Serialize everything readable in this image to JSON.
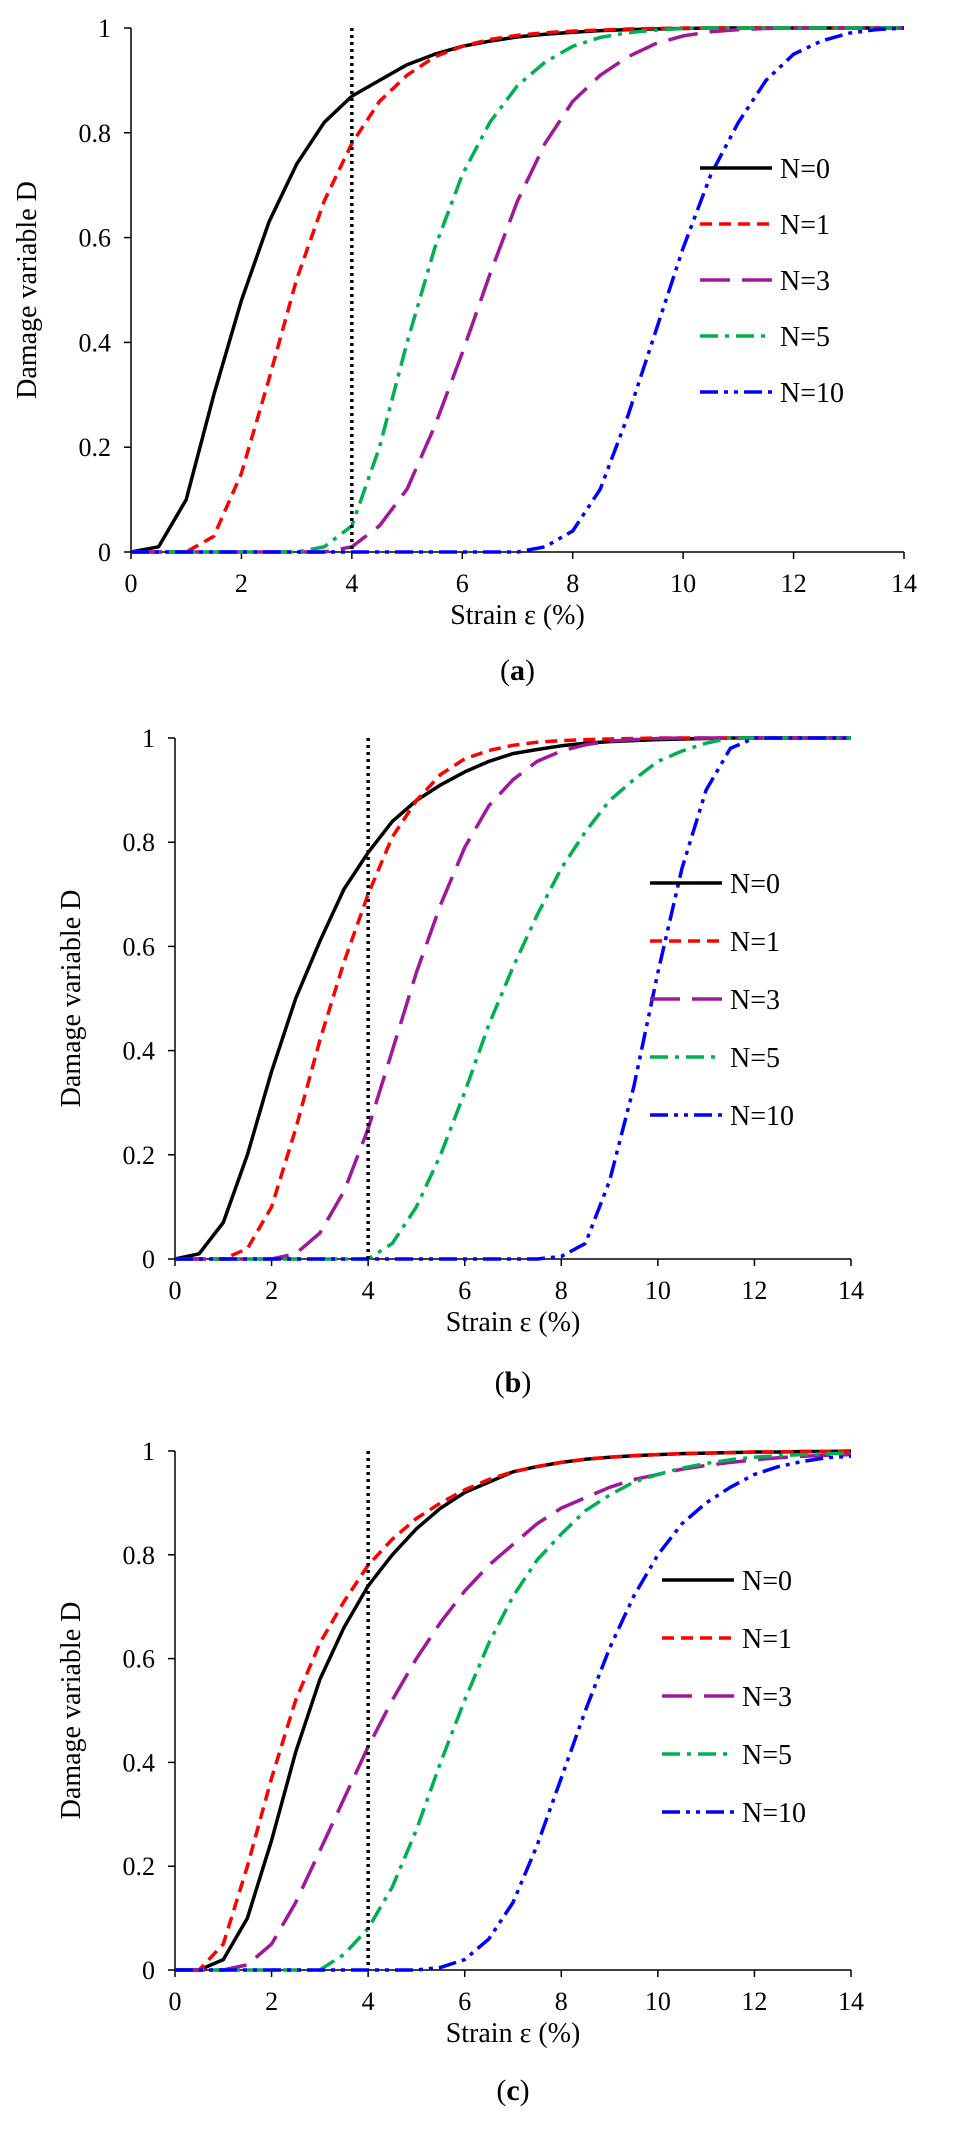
{
  "chart_data": [
    {
      "id": "a",
      "type": "line",
      "caption_open": "(",
      "caption_letter": "a",
      "caption_close": ")",
      "xlabel": "Strain ε (%)",
      "ylabel": "Damage variable D",
      "xlim": [
        0,
        14
      ],
      "ylim": [
        0,
        1
      ],
      "x_ticks": [
        "0",
        "2",
        "4",
        "6",
        "8",
        "10",
        "12",
        "14"
      ],
      "y_ticks": [
        "0",
        "0.2",
        "0.4",
        "0.6",
        "0.8",
        "1"
      ],
      "reference_x": 4,
      "legend_position": "right",
      "x": [
        0,
        0.5,
        1,
        1.5,
        2,
        2.5,
        3,
        3.5,
        4,
        4.5,
        5,
        5.5,
        6,
        6.5,
        7,
        7.5,
        8,
        8.5,
        9,
        9.5,
        10,
        10.5,
        11,
        11.5,
        12,
        12.5,
        13,
        13.5,
        14
      ],
      "series": [
        {
          "name": "N=0",
          "color": "#000000",
          "dash": "solid",
          "values": [
            0,
            0.01,
            0.1,
            0.3,
            0.48,
            0.63,
            0.74,
            0.82,
            0.87,
            0.9,
            0.93,
            0.95,
            0.965,
            0.975,
            0.983,
            0.988,
            0.992,
            0.995,
            0.997,
            0.998,
            0.999,
            1,
            1,
            1,
            1,
            1,
            1,
            1,
            1
          ]
        },
        {
          "name": "N=1",
          "color": "#ff0000",
          "dash": "short",
          "values": [
            0,
            0,
            0,
            0.03,
            0.15,
            0.33,
            0.52,
            0.67,
            0.78,
            0.86,
            0.91,
            0.945,
            0.965,
            0.978,
            0.986,
            0.991,
            0.994,
            0.996,
            0.998,
            0.999,
            1,
            1,
            1,
            1,
            1,
            1,
            1,
            1,
            1
          ]
        },
        {
          "name": "N=3",
          "color": "#a0189a",
          "dash": "long",
          "values": [
            0,
            0,
            0,
            0,
            0,
            0,
            0,
            0,
            0.01,
            0.05,
            0.12,
            0.24,
            0.38,
            0.53,
            0.67,
            0.78,
            0.86,
            0.91,
            0.945,
            0.97,
            0.985,
            0.993,
            0.997,
            0.999,
            1,
            1,
            1,
            1,
            1
          ]
        },
        {
          "name": "N=5",
          "color": "#00b050",
          "dash": "dashdot",
          "values": [
            0,
            0,
            0,
            0,
            0,
            0,
            0,
            0.01,
            0.05,
            0.2,
            0.4,
            0.58,
            0.72,
            0.82,
            0.89,
            0.935,
            0.965,
            0.982,
            0.991,
            0.996,
            0.999,
            1,
            1,
            1,
            1,
            1,
            1,
            1,
            1
          ]
        },
        {
          "name": "N=10",
          "color": "#0000ff",
          "dash": "dashdotdot",
          "values": [
            0,
            0,
            0,
            0,
            0,
            0,
            0,
            0,
            0,
            0,
            0,
            0,
            0,
            0,
            0,
            0.01,
            0.04,
            0.12,
            0.26,
            0.42,
            0.58,
            0.72,
            0.82,
            0.9,
            0.95,
            0.975,
            0.99,
            0.997,
            1
          ]
        }
      ]
    },
    {
      "id": "b",
      "type": "line",
      "caption_open": "(",
      "caption_letter": "b",
      "caption_close": ")",
      "xlabel": "Strain ε (%)",
      "ylabel": "Damage variable D",
      "xlim": [
        0,
        14
      ],
      "ylim": [
        0,
        1
      ],
      "x_ticks": [
        "0",
        "2",
        "4",
        "6",
        "8",
        "10",
        "12",
        "14"
      ],
      "y_ticks": [
        "0",
        "0.2",
        "0.4",
        "0.6",
        "0.8",
        "1"
      ],
      "reference_x": 4,
      "legend_position": "right",
      "x": [
        0,
        0.5,
        1,
        1.5,
        2,
        2.5,
        3,
        3.5,
        4,
        4.5,
        5,
        5.5,
        6,
        6.5,
        7,
        7.5,
        8,
        8.5,
        9,
        9.5,
        10,
        10.5,
        11,
        11.5,
        12,
        12.5,
        13,
        13.5,
        14
      ],
      "series": [
        {
          "name": "N=0",
          "color": "#000000",
          "dash": "solid",
          "values": [
            0,
            0.01,
            0.07,
            0.2,
            0.36,
            0.5,
            0.61,
            0.71,
            0.78,
            0.84,
            0.88,
            0.91,
            0.935,
            0.955,
            0.97,
            0.978,
            0.985,
            0.99,
            0.993,
            0.995,
            0.997,
            0.998,
            0.999,
            1,
            1,
            1,
            1,
            1,
            1
          ]
        },
        {
          "name": "N=1",
          "color": "#ff0000",
          "dash": "short",
          "values": [
            0,
            0,
            0,
            0.02,
            0.1,
            0.25,
            0.42,
            0.57,
            0.7,
            0.81,
            0.88,
            0.93,
            0.96,
            0.976,
            0.986,
            0.992,
            0.995,
            0.997,
            0.998,
            0.999,
            1,
            1,
            1,
            1,
            1,
            1,
            1,
            1,
            1
          ]
        },
        {
          "name": "N=3",
          "color": "#a0189a",
          "dash": "long",
          "values": [
            0,
            0,
            0,
            0,
            0,
            0.01,
            0.05,
            0.13,
            0.25,
            0.4,
            0.55,
            0.68,
            0.79,
            0.87,
            0.92,
            0.955,
            0.975,
            0.987,
            0.994,
            0.997,
            0.999,
            1,
            1,
            1,
            1,
            1,
            1,
            1,
            1
          ]
        },
        {
          "name": "N=5",
          "color": "#00b050",
          "dash": "dashdot",
          "values": [
            0,
            0,
            0,
            0,
            0,
            0,
            0,
            0,
            0,
            0.03,
            0.1,
            0.2,
            0.32,
            0.45,
            0.56,
            0.66,
            0.75,
            0.82,
            0.88,
            0.92,
            0.955,
            0.975,
            0.99,
            1,
            1,
            1,
            1,
            1,
            1
          ]
        },
        {
          "name": "N=10",
          "color": "#0000ff",
          "dash": "dashdotdot",
          "values": [
            0,
            0,
            0,
            0,
            0,
            0,
            0,
            0,
            0,
            0,
            0,
            0,
            0,
            0,
            0,
            0,
            0.005,
            0.03,
            0.15,
            0.33,
            0.55,
            0.75,
            0.9,
            0.98,
            1,
            1,
            1,
            1,
            1
          ]
        }
      ]
    },
    {
      "id": "c",
      "type": "line",
      "caption_open": "(",
      "caption_letter": "c",
      "caption_close": ")",
      "xlabel": "Strain ε (%)",
      "ylabel": "Damage variable D",
      "xlim": [
        0,
        14
      ],
      "ylim": [
        0,
        1
      ],
      "x_ticks": [
        "0",
        "2",
        "4",
        "6",
        "8",
        "10",
        "12",
        "14"
      ],
      "y_ticks": [
        "0",
        "0.2",
        "0.4",
        "0.6",
        "0.8",
        "1"
      ],
      "reference_x": 4,
      "legend_position": "right",
      "x": [
        0,
        0.5,
        1,
        1.5,
        2,
        2.5,
        3,
        3.5,
        4,
        4.5,
        5,
        5.5,
        6,
        6.5,
        7,
        7.5,
        8,
        8.5,
        9,
        9.5,
        10,
        10.5,
        11,
        11.5,
        12,
        12.5,
        13,
        13.5,
        14
      ],
      "series": [
        {
          "name": "N=0",
          "color": "#000000",
          "dash": "solid",
          "values": [
            0,
            0,
            0.02,
            0.1,
            0.25,
            0.42,
            0.56,
            0.66,
            0.74,
            0.8,
            0.85,
            0.89,
            0.92,
            0.94,
            0.96,
            0.97,
            0.978,
            0.984,
            0.988,
            0.991,
            0.993,
            0.995,
            0.996,
            0.997,
            0.998,
            0.998,
            0.999,
            0.999,
            1
          ]
        },
        {
          "name": "N=1",
          "color": "#ff0000",
          "dash": "short",
          "values": [
            0,
            0,
            0.05,
            0.2,
            0.37,
            0.52,
            0.63,
            0.71,
            0.78,
            0.83,
            0.87,
            0.9,
            0.925,
            0.945,
            0.96,
            0.97,
            0.978,
            0.984,
            0.988,
            0.991,
            0.993,
            0.995,
            0.996,
            0.997,
            0.998,
            0.998,
            0.999,
            0.999,
            1
          ]
        },
        {
          "name": "N=3",
          "color": "#a0189a",
          "dash": "long",
          "values": [
            0,
            0,
            0,
            0.01,
            0.05,
            0.13,
            0.23,
            0.33,
            0.43,
            0.52,
            0.6,
            0.67,
            0.73,
            0.78,
            0.82,
            0.86,
            0.89,
            0.91,
            0.93,
            0.945,
            0.955,
            0.965,
            0.972,
            0.978,
            0.983,
            0.987,
            0.99,
            0.992,
            0.993
          ]
        },
        {
          "name": "N=5",
          "color": "#00b050",
          "dash": "dashdot",
          "values": [
            0,
            0,
            0,
            0,
            0,
            0,
            0,
            0.03,
            0.08,
            0.16,
            0.27,
            0.4,
            0.52,
            0.63,
            0.72,
            0.79,
            0.84,
            0.885,
            0.915,
            0.94,
            0.955,
            0.967,
            0.976,
            0.983,
            0.988,
            0.991,
            0.993,
            0.995,
            0.996
          ]
        },
        {
          "name": "N=10",
          "color": "#0000ff",
          "dash": "dashdotdot",
          "values": [
            0,
            0,
            0,
            0,
            0,
            0,
            0,
            0,
            0,
            0,
            0,
            0.005,
            0.02,
            0.06,
            0.13,
            0.24,
            0.37,
            0.5,
            0.62,
            0.72,
            0.8,
            0.86,
            0.9,
            0.93,
            0.955,
            0.97,
            0.98,
            0.987,
            0.99
          ]
        }
      ]
    }
  ]
}
